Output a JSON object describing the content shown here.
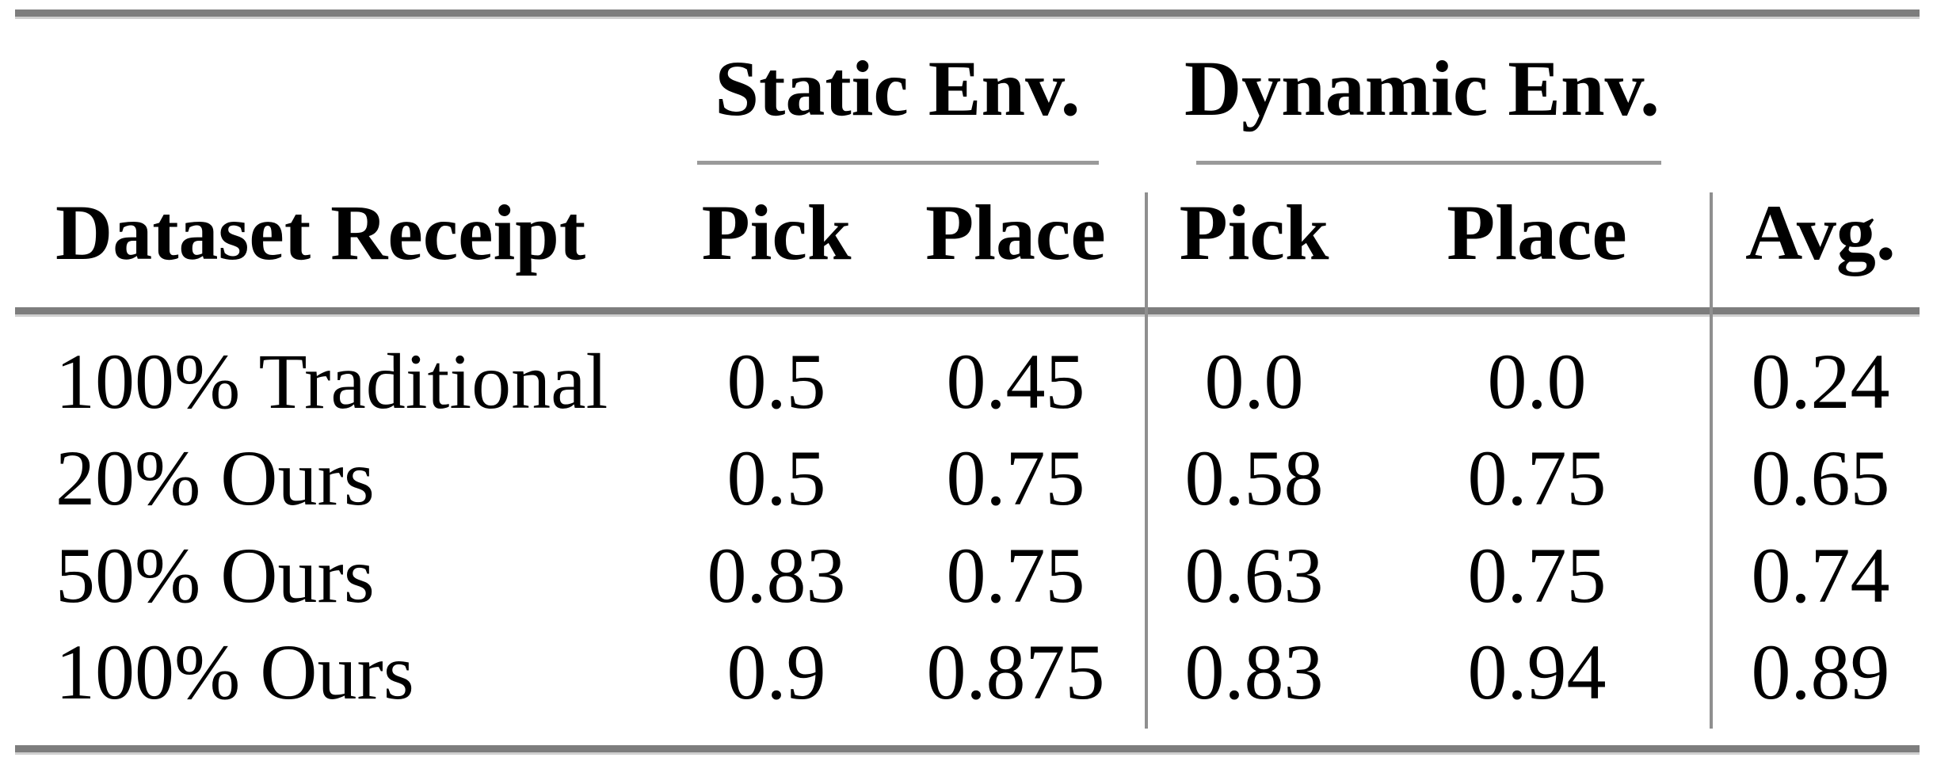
{
  "table": {
    "col_groups": [
      {
        "label": "Static Env."
      },
      {
        "label": "Dynamic Env."
      }
    ],
    "columns": {
      "row_header": "Dataset Receipt",
      "static_pick": "Pick",
      "static_place": "Place",
      "dynamic_pick": "Pick",
      "dynamic_place": "Place",
      "avg": "Avg."
    },
    "rows": [
      {
        "label": "100% Traditional",
        "static_pick": "0.5",
        "static_place": "0.45",
        "dynamic_pick": "0.0",
        "dynamic_place": "0.0",
        "avg": "0.24"
      },
      {
        "label": "20% Ours",
        "static_pick": "0.5",
        "static_place": "0.75",
        "dynamic_pick": "0.58",
        "dynamic_place": "0.75",
        "avg": "0.65"
      },
      {
        "label": "50% Ours",
        "static_pick": "0.83",
        "static_place": "0.75",
        "dynamic_pick": "0.63",
        "dynamic_place": "0.75",
        "avg": "0.74"
      },
      {
        "label": "100% Ours",
        "static_pick": "0.9",
        "static_place": "0.875",
        "dynamic_pick": "0.83",
        "dynamic_place": "0.94",
        "avg": "0.89"
      }
    ],
    "colors": {
      "text": "#000000",
      "thick_rule": "#7d7d7d",
      "thick_rule_shadow": "#cfcfcf",
      "cmidrule": "#9a9a9a",
      "vline": "#8f8f8f",
      "background": "#ffffff"
    }
  },
  "chart_data": {
    "type": "table",
    "title": "",
    "column_groups": [
      "",
      "Static Env.",
      "Static Env.",
      "Dynamic Env.",
      "Dynamic Env.",
      ""
    ],
    "columns": [
      "Dataset Receipt",
      "Pick",
      "Place",
      "Pick",
      "Place",
      "Avg."
    ],
    "rows": [
      [
        "100% Traditional",
        0.5,
        0.45,
        0.0,
        0.0,
        0.24
      ],
      [
        "20% Ours",
        0.5,
        0.75,
        0.58,
        0.75,
        0.65
      ],
      [
        "50% Ours",
        0.83,
        0.75,
        0.63,
        0.75,
        0.74
      ],
      [
        "100% Ours",
        0.9,
        0.875,
        0.83,
        0.94,
        0.89
      ]
    ]
  }
}
